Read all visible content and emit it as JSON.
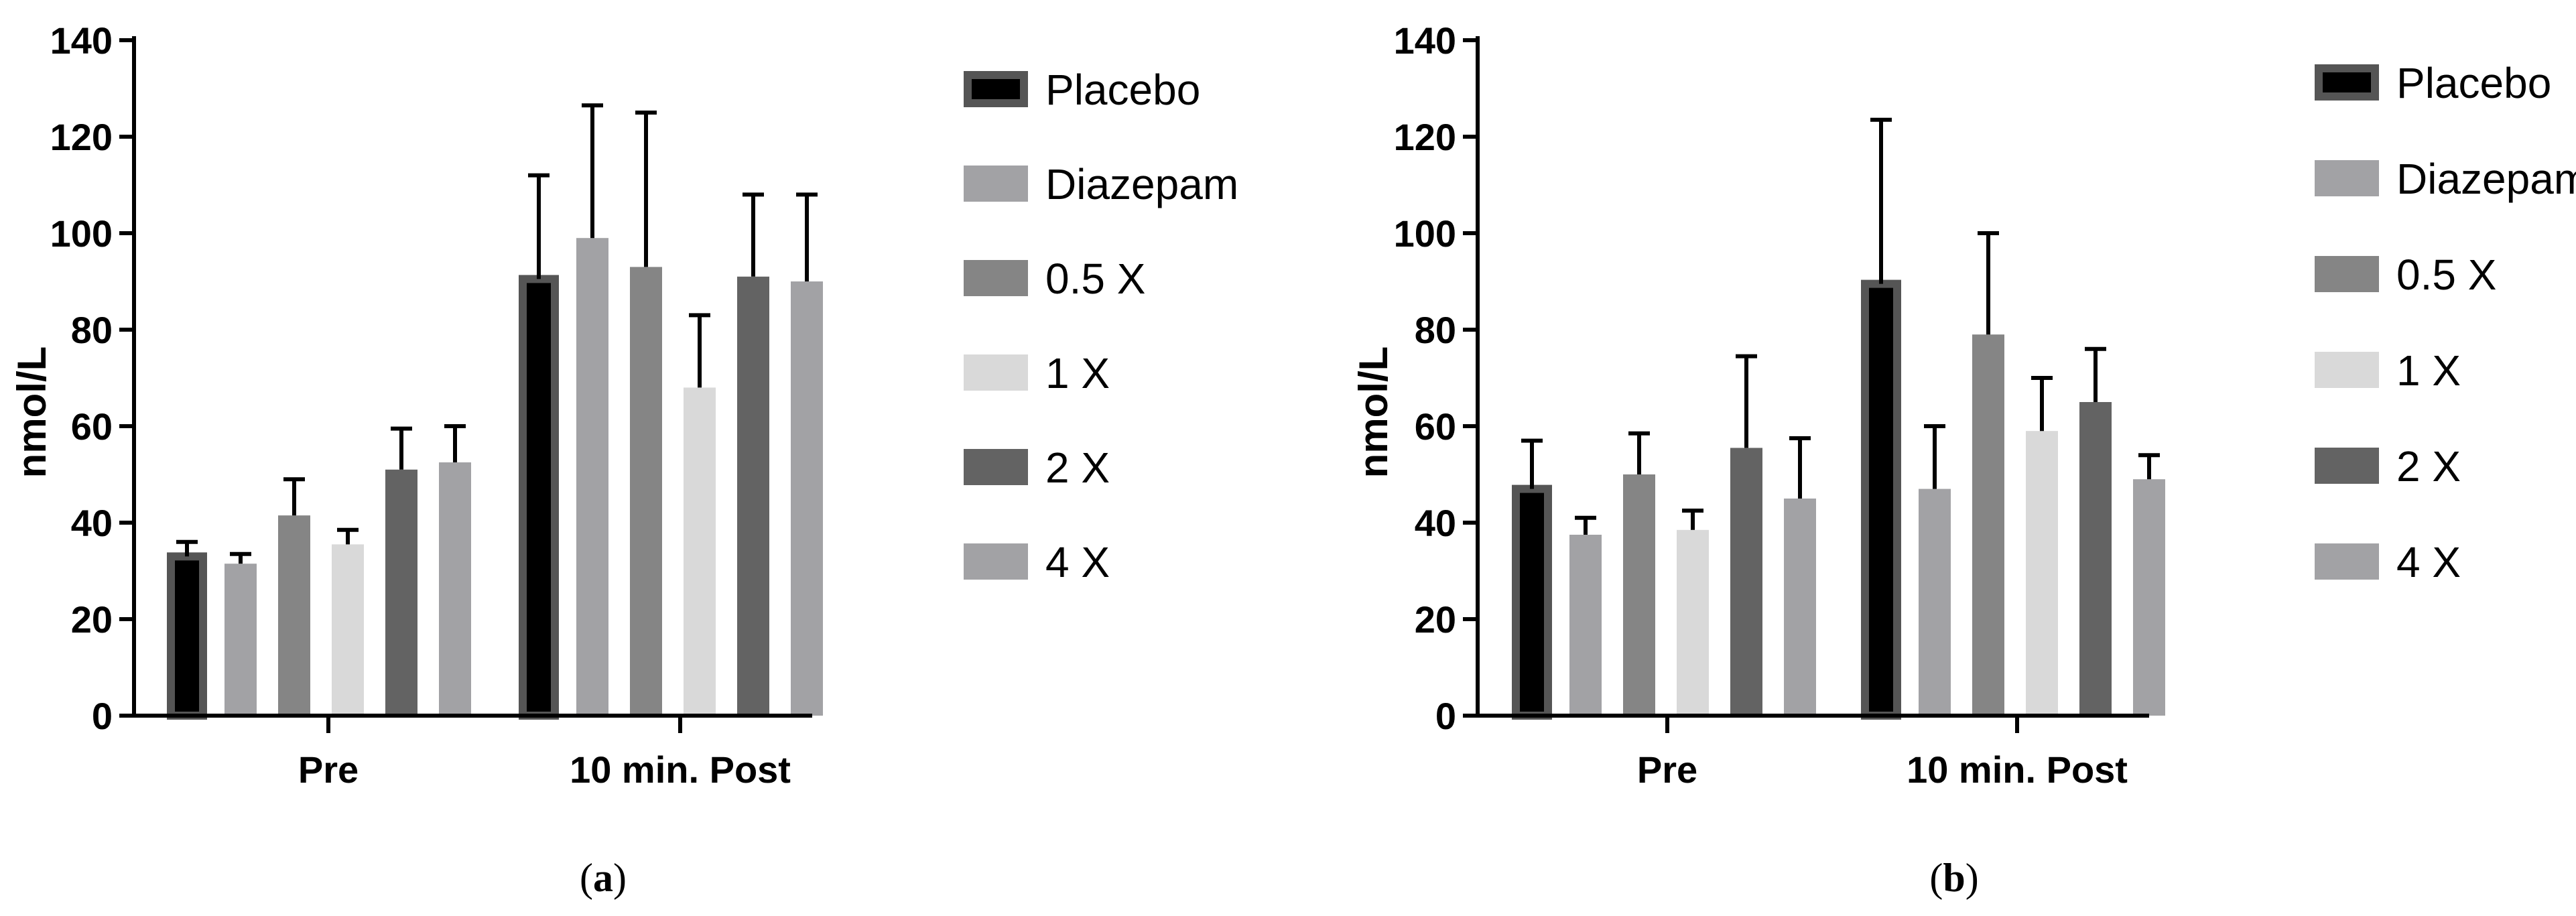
{
  "chart_data": [
    {
      "type": "bar",
      "panel": "a",
      "ylabel": "nmol/L",
      "ylim": [
        0,
        140
      ],
      "yticks": [
        0,
        20,
        40,
        60,
        80,
        100,
        120,
        140
      ],
      "categories": [
        "Pre",
        "10 min. Post"
      ],
      "series": [
        {
          "name": "Placebo",
          "values": [
            33,
            90.5
          ],
          "errors": [
            3,
            21.5
          ]
        },
        {
          "name": "Diazepam",
          "values": [
            31.5,
            99
          ],
          "errors": [
            2,
            27.5
          ]
        },
        {
          "name": "0.5 X",
          "values": [
            41.5,
            93
          ],
          "errors": [
            7.5,
            32
          ]
        },
        {
          "name": "1 X",
          "values": [
            35.5,
            68
          ],
          "errors": [
            3,
            15
          ]
        },
        {
          "name": "2 X",
          "values": [
            51,
            91
          ],
          "errors": [
            8.5,
            17
          ]
        },
        {
          "name": "4 X",
          "values": [
            52.5,
            90
          ],
          "errors": [
            7.5,
            18
          ]
        }
      ],
      "legend": [
        "Placebo",
        "Diazepam",
        "0.5 X",
        "1 X",
        "2 X",
        "4 X"
      ],
      "legend_position": "right"
    },
    {
      "type": "bar",
      "panel": "b",
      "ylabel": "nmol/L",
      "ylim": [
        0,
        140
      ],
      "yticks": [
        0,
        20,
        40,
        60,
        80,
        100,
        120,
        140
      ],
      "categories": [
        "Pre",
        "10 min. Post"
      ],
      "series": [
        {
          "name": "Placebo",
          "values": [
            47,
            89.5
          ],
          "errors": [
            10,
            34
          ]
        },
        {
          "name": "Diazepam",
          "values": [
            37.5,
            47
          ],
          "errors": [
            3.5,
            13
          ]
        },
        {
          "name": "0.5 X",
          "values": [
            50,
            79
          ],
          "errors": [
            8.5,
            21
          ]
        },
        {
          "name": "1 X",
          "values": [
            38.5,
            59
          ],
          "errors": [
            4,
            11
          ]
        },
        {
          "name": "2 X",
          "values": [
            55.5,
            65
          ],
          "errors": [
            19,
            11
          ]
        },
        {
          "name": "4 X",
          "values": [
            45,
            49
          ],
          "errors": [
            12.5,
            5
          ]
        }
      ],
      "legend": [
        "Placebo",
        "Diazepam",
        "0.5 X",
        "1 X",
        "2 X",
        "4 X"
      ],
      "legend_position": "right"
    }
  ],
  "panel_labels": [
    {
      "open": "(",
      "letter": "a",
      "close": ")"
    },
    {
      "open": "(",
      "letter": "b",
      "close": ")"
    }
  ],
  "colors": {
    "Placebo": "#000000",
    "Placebo_border": "#555555",
    "Diazepam": "#a2a2a5",
    "0.5 X": "#858585",
    "1 X": "#d9d9d9",
    "2 X": "#636363",
    "4 X": "#a2a2a5"
  }
}
